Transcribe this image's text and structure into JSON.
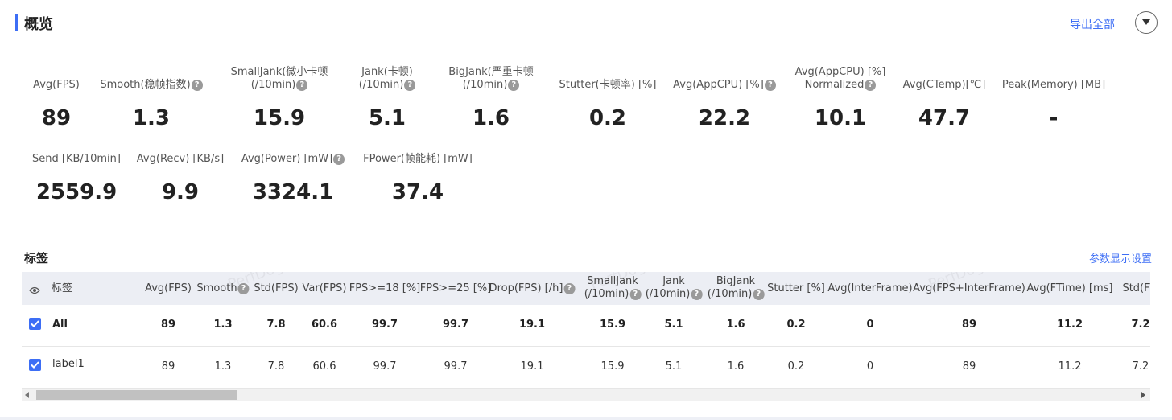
{
  "header": {
    "title": "概览",
    "export_label": "导出全部"
  },
  "metrics_row1": [
    {
      "label1": "Avg(FPS)",
      "label2": "",
      "value": "89"
    },
    {
      "label1": "Smooth(稳帧指数)",
      "label2": "",
      "value": "1.3"
    },
    {
      "label1": "SmallJank(微小卡顿",
      "label2": "(/10min)",
      "value": "15.9"
    },
    {
      "label1": "Jank(卡顿)",
      "label2": "(/10min)",
      "value": "5.1"
    },
    {
      "label1": "BigJank(严重卡顿",
      "label2": "(/10min)",
      "value": "1.6"
    },
    {
      "label1": "Stutter(卡顿率) [%]",
      "label2": "",
      "value": "0.2"
    },
    {
      "label1": "Avg(AppCPU) [%]",
      "label2": "",
      "value": "22.2"
    },
    {
      "label1": "Avg(AppCPU) [%]",
      "label2": "Normalized",
      "value": "10.1"
    },
    {
      "label1": "Avg(CTemp)[℃]",
      "label2": "",
      "value": "47.7"
    },
    {
      "label1": "Peak(Memory) [MB]",
      "label2": "",
      "value": "-"
    }
  ],
  "metrics_row2": [
    {
      "label1": "Send [KB/10min]",
      "value": "2559.9"
    },
    {
      "label1": "Avg(Recv) [KB/s]",
      "value": "9.9"
    },
    {
      "label1": "Avg(Power) [mW]",
      "value": "3324.1"
    },
    {
      "label1": "FPower(帧能耗) [mW]",
      "value": "37.4"
    }
  ],
  "tags": {
    "title": "标签",
    "settings_label": "参数显示设置",
    "columns": [
      {
        "l1": "标签",
        "l2": ""
      },
      {
        "l1": "Avg(FPS)",
        "l2": ""
      },
      {
        "l1": "Smooth",
        "l2": ""
      },
      {
        "l1": "Std(FPS)",
        "l2": ""
      },
      {
        "l1": "Var(FPS)",
        "l2": ""
      },
      {
        "l1": "FPS>=18 [%]",
        "l2": ""
      },
      {
        "l1": "FPS>=25 [%]",
        "l2": ""
      },
      {
        "l1": "Drop(FPS) [/h]",
        "l2": ""
      },
      {
        "l1": "SmallJank",
        "l2": "(/10min)"
      },
      {
        "l1": "Jank",
        "l2": "(/10min)"
      },
      {
        "l1": "BigJank",
        "l2": "(/10min)"
      },
      {
        "l1": "Stutter [%]",
        "l2": ""
      },
      {
        "l1": "Avg(InterFrame)",
        "l2": ""
      },
      {
        "l1": "Avg(FPS+InterFrame)",
        "l2": ""
      },
      {
        "l1": "Avg(FTime) [ms]",
        "l2": ""
      },
      {
        "l1": "Std(FTi",
        "l2": ""
      }
    ],
    "rows": [
      {
        "name": "All",
        "checked": true,
        "cells": [
          "89",
          "1.3",
          "7.8",
          "60.6",
          "99.7",
          "99.7",
          "19.1",
          "15.9",
          "5.1",
          "1.6",
          "0.2",
          "0",
          "89",
          "11.2",
          "7.2"
        ]
      },
      {
        "name": "label1",
        "checked": true,
        "cells": [
          "89",
          "1.3",
          "7.8",
          "60.6",
          "99.7",
          "99.7",
          "19.1",
          "15.9",
          "5.1",
          "1.6",
          "0.2",
          "0",
          "89",
          "11.2",
          "7.2"
        ]
      }
    ],
    "watermark": "PerfDog"
  },
  "colors": {
    "accent": "#3d6ef5",
    "header_bg": "#eceef4",
    "text": "#222222"
  }
}
